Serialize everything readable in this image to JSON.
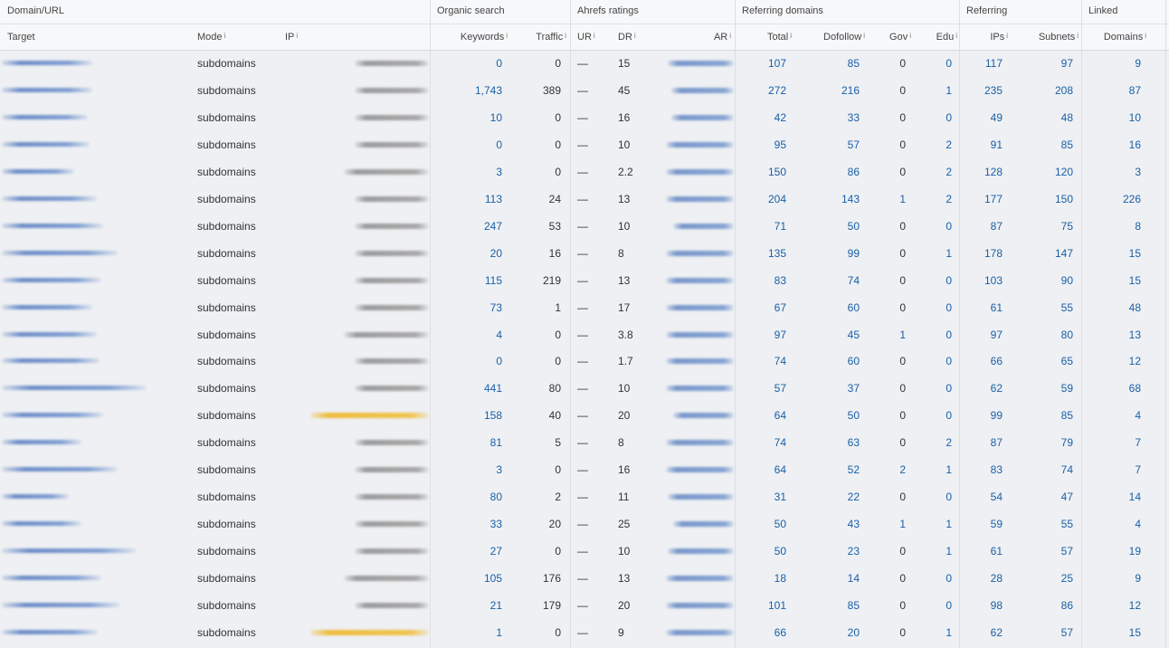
{
  "groups": [
    {
      "key": "domain",
      "label": "Domain/URL"
    },
    {
      "key": "organic",
      "label": "Organic search"
    },
    {
      "key": "ahrefs",
      "label": "Ahrefs ratings"
    },
    {
      "key": "refdomains",
      "label": "Referring domains"
    },
    {
      "key": "referring",
      "label": "Referring"
    },
    {
      "key": "linked",
      "label": "Linked"
    }
  ],
  "columns": [
    {
      "key": "target",
      "label": "Target",
      "info": ""
    },
    {
      "key": "mode",
      "label": "Mode",
      "info": "i"
    },
    {
      "key": "ip",
      "label": "IP",
      "info": "i"
    },
    {
      "key": "keywords",
      "label": "Keywords",
      "info": "i"
    },
    {
      "key": "traffic",
      "label": "Traffic",
      "info": "i"
    },
    {
      "key": "ur",
      "label": "UR",
      "info": "i"
    },
    {
      "key": "dr",
      "label": "DR",
      "info": "i"
    },
    {
      "key": "ar",
      "label": "AR",
      "info": "i"
    },
    {
      "key": "total",
      "label": "Total",
      "info": "i"
    },
    {
      "key": "dofollow",
      "label": "Dofollow",
      "info": "i"
    },
    {
      "key": "gov",
      "label": "Gov",
      "info": "i"
    },
    {
      "key": "edu",
      "label": "Edu",
      "info": "i"
    },
    {
      "key": "ips",
      "label": "IPs",
      "info": "i"
    },
    {
      "key": "subnets",
      "label": "Subnets",
      "info": "i"
    },
    {
      "key": "domains",
      "label": "Domains",
      "info": "i"
    }
  ],
  "rows": [
    {
      "mode": "subdomains",
      "ip_highlight": false,
      "keywords": "0",
      "traffic": "0",
      "ur": "—",
      "dr": "15",
      "total": "107",
      "dofollow": "85",
      "gov": "0",
      "edu": "0",
      "ips": "117",
      "subnets": "97",
      "domains": "9"
    },
    {
      "mode": "subdomains",
      "ip_highlight": false,
      "keywords": "1,743",
      "traffic": "389",
      "ur": "—",
      "dr": "45",
      "total": "272",
      "dofollow": "216",
      "gov": "0",
      "edu": "1",
      "ips": "235",
      "subnets": "208",
      "domains": "87"
    },
    {
      "mode": "subdomains",
      "ip_highlight": false,
      "keywords": "10",
      "traffic": "0",
      "ur": "—",
      "dr": "16",
      "total": "42",
      "dofollow": "33",
      "gov": "0",
      "edu": "0",
      "ips": "49",
      "subnets": "48",
      "domains": "10"
    },
    {
      "mode": "subdomains",
      "ip_highlight": false,
      "keywords": "0",
      "traffic": "0",
      "ur": "—",
      "dr": "10",
      "total": "95",
      "dofollow": "57",
      "gov": "0",
      "edu": "2",
      "ips": "91",
      "subnets": "85",
      "domains": "16"
    },
    {
      "mode": "subdomains",
      "ip_highlight": false,
      "keywords": "3",
      "traffic": "0",
      "ur": "—",
      "dr": "2.2",
      "total": "150",
      "dofollow": "86",
      "gov": "0",
      "edu": "2",
      "ips": "128",
      "subnets": "120",
      "domains": "3"
    },
    {
      "mode": "subdomains",
      "ip_highlight": false,
      "keywords": "113",
      "traffic": "24",
      "ur": "—",
      "dr": "13",
      "total": "204",
      "dofollow": "143",
      "gov": "1",
      "edu": "2",
      "ips": "177",
      "subnets": "150",
      "domains": "226"
    },
    {
      "mode": "subdomains",
      "ip_highlight": false,
      "keywords": "247",
      "traffic": "53",
      "ur": "—",
      "dr": "10",
      "total": "71",
      "dofollow": "50",
      "gov": "0",
      "edu": "0",
      "ips": "87",
      "subnets": "75",
      "domains": "8"
    },
    {
      "mode": "subdomains",
      "ip_highlight": false,
      "keywords": "20",
      "traffic": "16",
      "ur": "—",
      "dr": "8",
      "total": "135",
      "dofollow": "99",
      "gov": "0",
      "edu": "1",
      "ips": "178",
      "subnets": "147",
      "domains": "15"
    },
    {
      "mode": "subdomains",
      "ip_highlight": false,
      "keywords": "115",
      "traffic": "219",
      "ur": "—",
      "dr": "13",
      "total": "83",
      "dofollow": "74",
      "gov": "0",
      "edu": "0",
      "ips": "103",
      "subnets": "90",
      "domains": "15"
    },
    {
      "mode": "subdomains",
      "ip_highlight": false,
      "keywords": "73",
      "traffic": "1",
      "ur": "—",
      "dr": "17",
      "total": "67",
      "dofollow": "60",
      "gov": "0",
      "edu": "0",
      "ips": "61",
      "subnets": "55",
      "domains": "48"
    },
    {
      "mode": "subdomains",
      "ip_highlight": false,
      "keywords": "4",
      "traffic": "0",
      "ur": "—",
      "dr": "3.8",
      "total": "97",
      "dofollow": "45",
      "gov": "1",
      "edu": "0",
      "ips": "97",
      "subnets": "80",
      "domains": "13"
    },
    {
      "mode": "subdomains",
      "ip_highlight": false,
      "keywords": "0",
      "traffic": "0",
      "ur": "—",
      "dr": "1.7",
      "total": "74",
      "dofollow": "60",
      "gov": "0",
      "edu": "0",
      "ips": "66",
      "subnets": "65",
      "domains": "12"
    },
    {
      "mode": "subdomains",
      "ip_highlight": false,
      "keywords": "441",
      "traffic": "80",
      "ur": "—",
      "dr": "10",
      "total": "57",
      "dofollow": "37",
      "gov": "0",
      "edu": "0",
      "ips": "62",
      "subnets": "59",
      "domains": "68"
    },
    {
      "mode": "subdomains",
      "ip_highlight": true,
      "keywords": "158",
      "traffic": "40",
      "ur": "—",
      "dr": "20",
      "total": "64",
      "dofollow": "50",
      "gov": "0",
      "edu": "0",
      "ips": "99",
      "subnets": "85",
      "domains": "4"
    },
    {
      "mode": "subdomains",
      "ip_highlight": false,
      "keywords": "81",
      "traffic": "5",
      "ur": "—",
      "dr": "8",
      "total": "74",
      "dofollow": "63",
      "gov": "0",
      "edu": "2",
      "ips": "87",
      "subnets": "79",
      "domains": "7"
    },
    {
      "mode": "subdomains",
      "ip_highlight": false,
      "keywords": "3",
      "traffic": "0",
      "ur": "—",
      "dr": "16",
      "total": "64",
      "dofollow": "52",
      "gov": "2",
      "edu": "1",
      "ips": "83",
      "subnets": "74",
      "domains": "7"
    },
    {
      "mode": "subdomains",
      "ip_highlight": false,
      "keywords": "80",
      "traffic": "2",
      "ur": "—",
      "dr": "11",
      "total": "31",
      "dofollow": "22",
      "gov": "0",
      "edu": "0",
      "ips": "54",
      "subnets": "47",
      "domains": "14"
    },
    {
      "mode": "subdomains",
      "ip_highlight": false,
      "keywords": "33",
      "traffic": "20",
      "ur": "—",
      "dr": "25",
      "total": "50",
      "dofollow": "43",
      "gov": "1",
      "edu": "1",
      "ips": "59",
      "subnets": "55",
      "domains": "4"
    },
    {
      "mode": "subdomains",
      "ip_highlight": false,
      "keywords": "27",
      "traffic": "0",
      "ur": "—",
      "dr": "10",
      "total": "50",
      "dofollow": "23",
      "gov": "0",
      "edu": "1",
      "ips": "61",
      "subnets": "57",
      "domains": "19"
    },
    {
      "mode": "subdomains",
      "ip_highlight": false,
      "keywords": "105",
      "traffic": "176",
      "ur": "—",
      "dr": "13",
      "total": "18",
      "dofollow": "14",
      "gov": "0",
      "edu": "0",
      "ips": "28",
      "subnets": "25",
      "domains": "9"
    },
    {
      "mode": "subdomains",
      "ip_highlight": false,
      "keywords": "21",
      "traffic": "179",
      "ur": "—",
      "dr": "20",
      "total": "101",
      "dofollow": "85",
      "gov": "0",
      "edu": "0",
      "ips": "98",
      "subnets": "86",
      "domains": "12"
    },
    {
      "mode": "subdomains",
      "ip_highlight": true,
      "keywords": "1",
      "traffic": "0",
      "ur": "—",
      "dr": "9",
      "total": "66",
      "dofollow": "20",
      "gov": "0",
      "edu": "1",
      "ips": "62",
      "subnets": "57",
      "domains": "15"
    }
  ]
}
